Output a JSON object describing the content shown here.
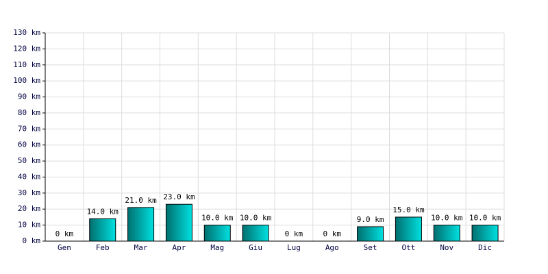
{
  "chart_data": {
    "type": "bar",
    "categories": [
      "Gen",
      "Feb",
      "Mar",
      "Apr",
      "Mag",
      "Giu",
      "Lug",
      "Ago",
      "Set",
      "Ott",
      "Nov",
      "Dic"
    ],
    "values": [
      0,
      14,
      21,
      23,
      10,
      10,
      0,
      0,
      9,
      15,
      10,
      10
    ],
    "value_labels": [
      "0 km",
      "14.0 km",
      "21.0 km",
      "23.0 km",
      "10.0 km",
      "10.0 km",
      "0 km",
      "0 km",
      "9.0 km",
      "15.0 km",
      "10.0 km",
      "10.0 km"
    ],
    "color": "#00e0e0",
    "ylim": [
      0,
      130
    ],
    "yticks": [
      {
        "value": 0,
        "label": "0 km"
      },
      {
        "value": 10,
        "label": "10 km"
      },
      {
        "value": 20,
        "label": "20 km"
      },
      {
        "value": 30,
        "label": "30 km"
      },
      {
        "value": 40,
        "label": "40 km"
      },
      {
        "value": 50,
        "label": "50 km"
      },
      {
        "value": 60,
        "label": "60 km"
      },
      {
        "value": 70,
        "label": "70 km"
      },
      {
        "value": 80,
        "label": "80 km"
      },
      {
        "value": 90,
        "label": "90 km"
      },
      {
        "value": 100,
        "label": "100 km"
      },
      {
        "value": 110,
        "label": "110 km"
      },
      {
        "value": 120,
        "label": "120 km"
      },
      {
        "value": 130,
        "label": "130 km"
      }
    ],
    "grid": true
  }
}
